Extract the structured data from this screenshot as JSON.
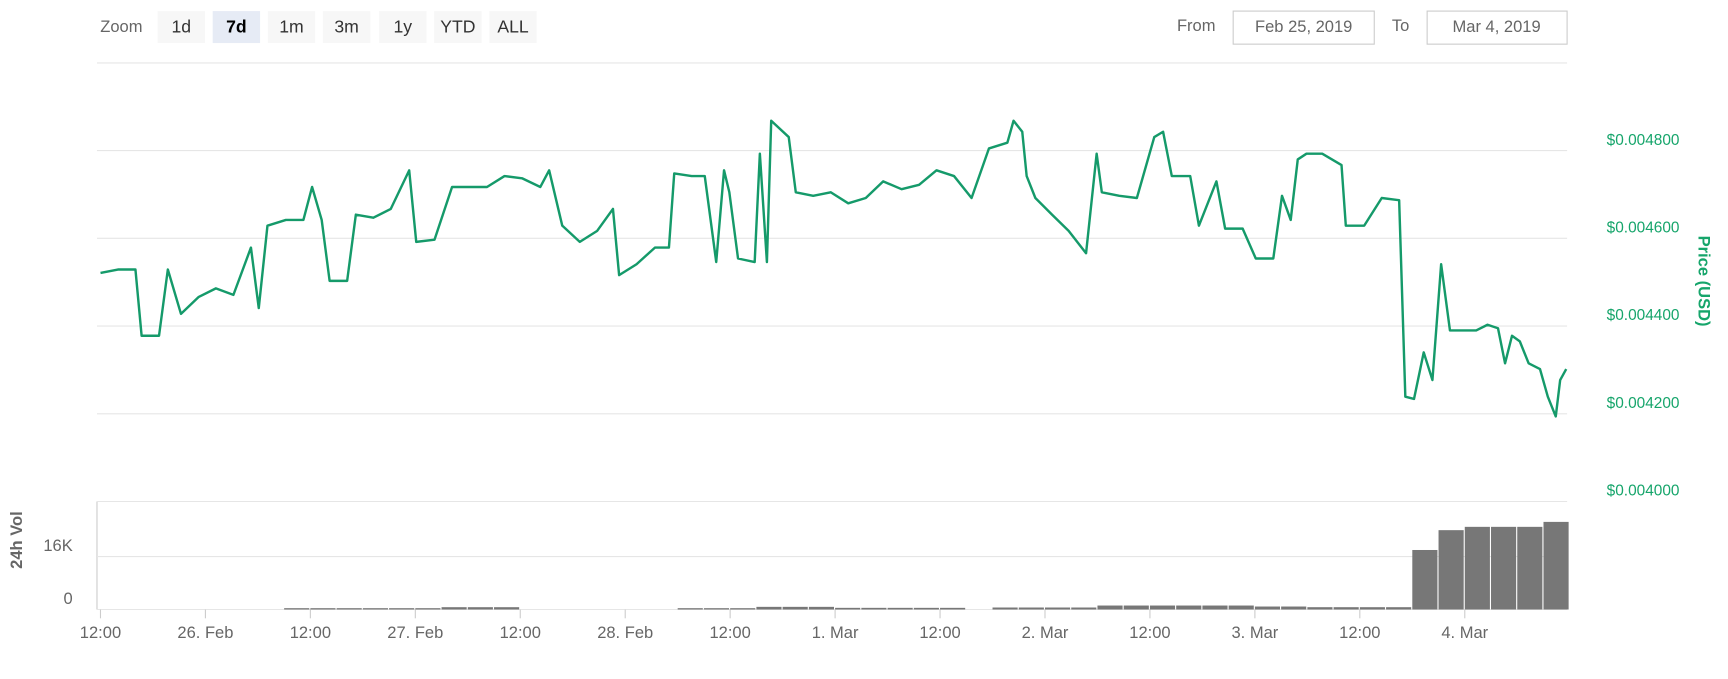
{
  "controls": {
    "zoom_label": "Zoom",
    "buttons": [
      "1d",
      "7d",
      "1m",
      "3m",
      "1y",
      "YTD",
      "ALL"
    ],
    "selected": 1,
    "from_label": "From",
    "from_value": "Feb 25, 2019",
    "to_label": "To",
    "to_value": "Mar 4, 2019"
  },
  "chart_data": [
    {
      "type": "line",
      "y_axis_label": "Price (USD)",
      "color": "#159a6a",
      "grid": true,
      "xlim": [
        11.6,
        179.7
      ],
      "ylim": [
        0.004,
        0.005
      ],
      "yticks": [
        {
          "value": 0.004,
          "label": "$0.004000"
        },
        {
          "value": 0.0042,
          "label": "$0.004200"
        },
        {
          "value": 0.0044,
          "label": "$0.004400"
        },
        {
          "value": 0.0046,
          "label": "$0.004600"
        },
        {
          "value": 0.0048,
          "label": "$0.004800"
        }
      ],
      "x": [
        12,
        14,
        16,
        16.7,
        18.7,
        19.7,
        21.2,
        23.2,
        25.2,
        27.2,
        29.2,
        30.1,
        31.1,
        33.2,
        35.2,
        36.2,
        37.3,
        38.2,
        40.2,
        41.2,
        43.2,
        45.2,
        47.3,
        48.1,
        50.2,
        52.2,
        54.2,
        56.2,
        58.2,
        60.2,
        62.3,
        63.3,
        64.8,
        66.8,
        68.8,
        70.6,
        71.3,
        73.3,
        75.4,
        77,
        77.6,
        79.6,
        81.1,
        82.4,
        83.3,
        83.9,
        84.9,
        86.8,
        87.4,
        88.2,
        88.7,
        90.7,
        91.5,
        93.5,
        95.5,
        97.5,
        99.5,
        101.5,
        103.6,
        105.6,
        107.6,
        109.6,
        111.6,
        113.6,
        115.7,
        116.4,
        117.4,
        117.9,
        118.9,
        120.8,
        122.7,
        124.7,
        125.9,
        126.5,
        128.5,
        130.5,
        132.5,
        133.5,
        134.5,
        136.6,
        137.6,
        139.6,
        140.6,
        142.6,
        144.1,
        146.1,
        147.1,
        148.1,
        148.9,
        149.9,
        151.7,
        153.9,
        154.4,
        156.5,
        158.5,
        160.5,
        161.2,
        162.2,
        163.3,
        164.3,
        165.3,
        166.3,
        168.3,
        169.3,
        170.6,
        171.8,
        172.6,
        173.4,
        174.3,
        175.3,
        176.6,
        177.5,
        178.4,
        178.9,
        179.6
      ],
      "values": [
        0.004521,
        0.004529,
        0.004529,
        0.004378,
        0.004378,
        0.004529,
        0.004428,
        0.004466,
        0.004486,
        0.004471,
        0.004579,
        0.004441,
        0.004629,
        0.004642,
        0.004642,
        0.004717,
        0.004642,
        0.004503,
        0.004503,
        0.004654,
        0.004647,
        0.004667,
        0.004755,
        0.004592,
        0.004597,
        0.004717,
        0.004717,
        0.004717,
        0.004742,
        0.004737,
        0.004717,
        0.004755,
        0.004629,
        0.004592,
        0.004617,
        0.004667,
        0.004516,
        0.004541,
        0.004579,
        0.004579,
        0.004748,
        0.004742,
        0.004742,
        0.004546,
        0.004755,
        0.004705,
        0.004554,
        0.004546,
        0.004793,
        0.004546,
        0.004868,
        0.004831,
        0.004705,
        0.004697,
        0.004705,
        0.00468,
        0.004692,
        0.00473,
        0.004712,
        0.004722,
        0.004755,
        0.004742,
        0.004692,
        0.004805,
        0.004818,
        0.004868,
        0.004843,
        0.004742,
        0.004692,
        0.004654,
        0.004617,
        0.004566,
        0.004793,
        0.004705,
        0.004697,
        0.004692,
        0.004831,
        0.004843,
        0.004742,
        0.004742,
        0.004629,
        0.00473,
        0.004622,
        0.004622,
        0.004554,
        0.004554,
        0.004697,
        0.004642,
        0.00478,
        0.004793,
        0.004793,
        0.004767,
        0.004629,
        0.004629,
        0.004692,
        0.004687,
        0.004239,
        0.004234,
        0.00434,
        0.004277,
        0.004541,
        0.00439,
        0.00439,
        0.00439,
        0.004403,
        0.004395,
        0.004315,
        0.004378,
        0.004365,
        0.004315,
        0.004302,
        0.004239,
        0.004194,
        0.004277,
        0.004302
      ]
    },
    {
      "type": "bar",
      "y_axis_label": "24h Vol",
      "color": "#777777",
      "grid": true,
      "xlim": [
        11.6,
        179.7
      ],
      "ylim": [
        0,
        32000
      ],
      "yticks": [
        0,
        {
          "value": 16000,
          "label": "16K"
        }
      ],
      "xticks": [
        {
          "value": 12,
          "label": "12:00"
        },
        {
          "value": 24,
          "label": "26. Feb"
        },
        {
          "value": 36,
          "label": "12:00"
        },
        {
          "value": 48,
          "label": "27. Feb"
        },
        {
          "value": 60,
          "label": "12:00"
        },
        {
          "value": 72,
          "label": "28. Feb"
        },
        {
          "value": 84,
          "label": "12:00"
        },
        {
          "value": 96,
          "label": "1. Mar"
        },
        {
          "value": 108,
          "label": "12:00"
        },
        {
          "value": 120,
          "label": "2. Mar"
        },
        {
          "value": 132,
          "label": "12:00"
        },
        {
          "value": 144,
          "label": "3. Mar"
        },
        {
          "value": 156,
          "label": "12:00"
        },
        {
          "value": 168,
          "label": "4. Mar"
        }
      ],
      "bar_width": 3,
      "x": [
        12,
        15,
        18,
        21,
        24,
        27,
        30,
        33,
        36,
        39,
        42,
        45,
        48,
        51,
        54,
        57,
        60,
        63,
        66,
        69,
        72,
        75,
        78,
        81,
        84,
        87,
        90,
        93,
        96,
        99,
        102,
        105,
        108,
        111,
        114,
        117,
        120,
        123,
        126,
        129,
        132,
        135,
        138,
        141,
        144,
        147,
        150,
        153,
        156,
        159,
        162,
        165,
        168,
        171,
        174,
        177
      ],
      "values": [
        0,
        0,
        0,
        0,
        0,
        0,
        0,
        400,
        400,
        400,
        400,
        400,
        400,
        700,
        700,
        700,
        0,
        0,
        0,
        0,
        0,
        0,
        400,
        400,
        400,
        800,
        800,
        800,
        500,
        500,
        500,
        500,
        500,
        0,
        600,
        600,
        600,
        600,
        1200,
        1200,
        1200,
        1200,
        1200,
        1200,
        900,
        900,
        700,
        700,
        700,
        700,
        18000,
        24000,
        25000,
        25000,
        25000,
        26500
      ]
    }
  ]
}
